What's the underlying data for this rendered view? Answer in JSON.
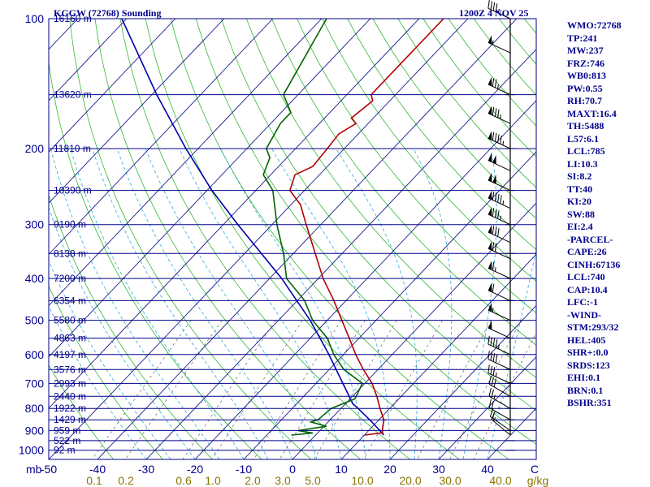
{
  "title": {
    "station": "KGGW (72768) Sounding",
    "time": "1200Z  4 NOV 25"
  },
  "indices": [
    "WMO:72768",
    "TP:241",
    "MW:237",
    "FRZ:746",
    "WB0:813",
    "PW:0.55",
    "RH:70.7",
    "MAXT:16.4",
    "TH:5488",
    "L57:6.1",
    "LCL:785",
    "LI:10.3",
    "SI:8.2",
    "TT:40",
    "KI:20",
    "SW:88",
    "EI:2.4",
    "-PARCEL-",
    "CAPE:26",
    "CINH:67136",
    "LCL:740",
    "CAP:10.4",
    "LFC:-1",
    "-WIND-",
    "STM:293/32",
    "HEL:405",
    "SHR+:0.0",
    "SRDS:123",
    "EHI:0.1",
    "BRN:0.1",
    "BSHR:351"
  ],
  "colors": {
    "temperature": "#b30000",
    "dewpoint": "#006400",
    "parcel": "#0000b3",
    "isobar": "#00008b",
    "isotherm": "#1a1a8c",
    "dry_adiabat": "#33b833",
    "moist_adiabat": "#33aadd",
    "mixing_ratio": "#666666",
    "text": "#00008b",
    "mixing_ratio_label": "#8b7500"
  },
  "chart_data": {
    "type": "skew-t",
    "pressure_axis_label": "mb",
    "pressure_ticks": [
      "100",
      "200",
      "300",
      "400",
      "500",
      "600",
      "700",
      "800",
      "900",
      "1000"
    ],
    "temperature_ticks": [
      "-50",
      "-40",
      "-30",
      "-20",
      "-10",
      "0",
      "10",
      "20",
      "30",
      "40"
    ],
    "mixing_ratio_axis_label": "g/kg",
    "mixing_ratio_ticks": [
      "0.1",
      "0.2",
      "0.6",
      "1.0",
      "2.0",
      "3.0",
      "5.0",
      "10.0",
      "20.0",
      "30.0",
      "40.0"
    ],
    "height_labels": [
      {
        "text": "16160 m",
        "p": 100
      },
      {
        "text": "13620 m",
        "p": 150
      },
      {
        "text": "11810 m",
        "p": 200
      },
      {
        "text": "10390 m",
        "p": 250
      },
      {
        "text": "9190 m",
        "p": 300
      },
      {
        "text": "8138 m",
        "p": 350
      },
      {
        "text": "7200 m",
        "p": 400
      },
      {
        "text": "6354 m",
        "p": 450
      },
      {
        "text": "5580 m",
        "p": 500
      },
      {
        "text": "4863 m",
        "p": 550
      },
      {
        "text": "4197 m",
        "p": 600
      },
      {
        "text": "3576 m",
        "p": 650
      },
      {
        "text": "2993 m",
        "p": 700
      },
      {
        "text": "2440 m",
        "p": 750
      },
      {
        "text": "1922 m",
        "p": 800
      },
      {
        "text": "1429 m",
        "p": 850
      },
      {
        "text": "959 m",
        "p": 900
      },
      {
        "text": "522 m",
        "p": 950
      },
      {
        "text": "92 m",
        "p": 1000
      }
    ],
    "temperature_profile": [
      {
        "p": 922,
        "t": 10.0
      },
      {
        "p": 911,
        "t": 13.3
      },
      {
        "p": 900,
        "t": 12.8
      },
      {
        "p": 850,
        "t": 11.0
      },
      {
        "p": 800,
        "t": 8.0
      },
      {
        "p": 750,
        "t": 5.0
      },
      {
        "p": 700,
        "t": 1.5
      },
      {
        "p": 650,
        "t": -3.0
      },
      {
        "p": 600,
        "t": -7.5
      },
      {
        "p": 550,
        "t": -12.0
      },
      {
        "p": 500,
        "t": -17.0
      },
      {
        "p": 450,
        "t": -22.5
      },
      {
        "p": 400,
        "t": -29.0
      },
      {
        "p": 350,
        "t": -35.5
      },
      {
        "p": 300,
        "t": -43.0
      },
      {
        "p": 270,
        "t": -48.0
      },
      {
        "p": 250,
        "t": -53.0
      },
      {
        "p": 230,
        "t": -55.0
      },
      {
        "p": 220,
        "t": -53.0
      },
      {
        "p": 200,
        "t": -53.5
      },
      {
        "p": 185,
        "t": -54.0
      },
      {
        "p": 175,
        "t": -52.5
      },
      {
        "p": 170,
        "t": -54.5
      },
      {
        "p": 155,
        "t": -53.5
      },
      {
        "p": 150,
        "t": -55.0
      },
      {
        "p": 100,
        "t": -55.0
      }
    ],
    "dewpoint_profile": [
      {
        "p": 922,
        "t": -5.0
      },
      {
        "p": 912,
        "t": -1.0
      },
      {
        "p": 900,
        "t": -4.5
      },
      {
        "p": 880,
        "t": 0.5
      },
      {
        "p": 860,
        "t": -3.5
      },
      {
        "p": 850,
        "t": -2.5
      },
      {
        "p": 800,
        "t": -2.0
      },
      {
        "p": 760,
        "t": 1.0
      },
      {
        "p": 700,
        "t": -0.5
      },
      {
        "p": 650,
        "t": -7.0
      },
      {
        "p": 600,
        "t": -12.0
      },
      {
        "p": 550,
        "t": -16.5
      },
      {
        "p": 500,
        "t": -23.0
      },
      {
        "p": 450,
        "t": -28.5
      },
      {
        "p": 400,
        "t": -36.5
      },
      {
        "p": 350,
        "t": -42.0
      },
      {
        "p": 300,
        "t": -49.0
      },
      {
        "p": 250,
        "t": -56.5
      },
      {
        "p": 230,
        "t": -61.5
      },
      {
        "p": 210,
        "t": -63.5
      },
      {
        "p": 200,
        "t": -66.0
      },
      {
        "p": 175,
        "t": -68.0
      },
      {
        "p": 165,
        "t": -68.0
      },
      {
        "p": 150,
        "t": -73.0
      },
      {
        "p": 100,
        "t": -79.0
      }
    ],
    "parcel_profile": [
      {
        "p": 922,
        "t": 14.0
      },
      {
        "p": 860,
        "t": 9.0
      },
      {
        "p": 800,
        "t": 3.5
      },
      {
        "p": 780,
        "t": 1.5
      },
      {
        "p": 700,
        "t": -4.5
      },
      {
        "p": 600,
        "t": -13.0
      },
      {
        "p": 500,
        "t": -23.5
      },
      {
        "p": 400,
        "t": -37.5
      },
      {
        "p": 300,
        "t": -57.0
      },
      {
        "p": 250,
        "t": -69.0
      },
      {
        "p": 200,
        "t": -82.5
      },
      {
        "p": 150,
        "t": -99.0
      },
      {
        "p": 100,
        "t": -121.0
      }
    ],
    "wind_barbs": [
      {
        "p": 100,
        "dir": 295,
        "spd": 45
      },
      {
        "p": 120,
        "dir": 295,
        "spd": 55
      },
      {
        "p": 150,
        "dir": 295,
        "spd": 75
      },
      {
        "p": 175,
        "dir": 295,
        "spd": 85
      },
      {
        "p": 200,
        "dir": 295,
        "spd": 95
      },
      {
        "p": 225,
        "dir": 295,
        "spd": 100
      },
      {
        "p": 250,
        "dir": 295,
        "spd": 100
      },
      {
        "p": 275,
        "dir": 295,
        "spd": 95
      },
      {
        "p": 300,
        "dir": 295,
        "spd": 85
      },
      {
        "p": 330,
        "dir": 295,
        "spd": 80
      },
      {
        "p": 360,
        "dir": 295,
        "spd": 70
      },
      {
        "p": 400,
        "dir": 295,
        "spd": 65
      },
      {
        "p": 450,
        "dir": 295,
        "spd": 60
      },
      {
        "p": 500,
        "dir": 295,
        "spd": 55
      },
      {
        "p": 550,
        "dir": 295,
        "spd": 50
      },
      {
        "p": 600,
        "dir": 295,
        "spd": 45
      },
      {
        "p": 650,
        "dir": 295,
        "spd": 40
      },
      {
        "p": 700,
        "dir": 295,
        "spd": 35
      },
      {
        "p": 750,
        "dir": 300,
        "spd": 30
      },
      {
        "p": 800,
        "dir": 300,
        "spd": 25
      },
      {
        "p": 850,
        "dir": 300,
        "spd": 20
      },
      {
        "p": 900,
        "dir": 305,
        "spd": 15
      },
      {
        "p": 922,
        "dir": 310,
        "spd": 15
      }
    ]
  }
}
